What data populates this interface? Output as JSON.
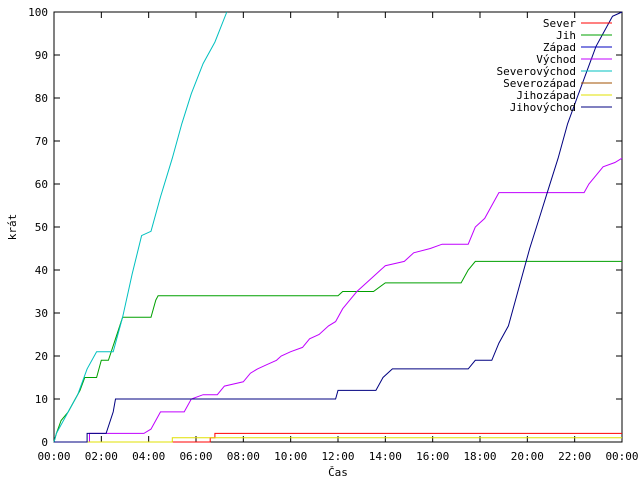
{
  "chart_data": {
    "type": "line",
    "title": "",
    "xlabel": "Čas",
    "ylabel": "krát",
    "x_unit": "hours",
    "xlim": [
      0,
      24
    ],
    "ylim": [
      0,
      100
    ],
    "x_tick_labels": [
      "00:00",
      "02:00",
      "04:00",
      "06:00",
      "08:00",
      "10:00",
      "12:00",
      "14:00",
      "16:00",
      "18:00",
      "20:00",
      "22:00",
      "00:00"
    ],
    "y_tick_labels": [
      "0",
      "10",
      "20",
      "30",
      "40",
      "50",
      "60",
      "70",
      "80",
      "90",
      "100"
    ],
    "grid": false,
    "legend_position": "top-right",
    "series": [
      {
        "name": "Sever",
        "color": "#ff0000",
        "points": [
          [
            0,
            0
          ],
          [
            6.6,
            0
          ],
          [
            6.6,
            1
          ],
          [
            6.8,
            1
          ],
          [
            6.8,
            2
          ],
          [
            24,
            2
          ]
        ]
      },
      {
        "name": "Jih",
        "color": "#00a000",
        "points": [
          [
            0,
            0
          ],
          [
            0.1,
            2
          ],
          [
            0.3,
            5
          ],
          [
            0.6,
            7
          ],
          [
            0.8,
            9
          ],
          [
            1.1,
            12
          ],
          [
            1.3,
            15
          ],
          [
            1.8,
            15
          ],
          [
            2.0,
            19
          ],
          [
            2.3,
            19
          ],
          [
            2.6,
            24
          ],
          [
            2.9,
            29
          ],
          [
            3.5,
            29
          ],
          [
            4.1,
            29
          ],
          [
            4.3,
            33
          ],
          [
            4.4,
            34
          ],
          [
            8.0,
            34
          ],
          [
            12.0,
            34
          ],
          [
            12.2,
            35
          ],
          [
            13.5,
            35
          ],
          [
            14.0,
            37
          ],
          [
            17.2,
            37
          ],
          [
            17.5,
            40
          ],
          [
            17.8,
            42
          ],
          [
            24,
            42
          ]
        ]
      },
      {
        "name": "Západ",
        "color": "#0000c0",
        "points": []
      },
      {
        "name": "Východ",
        "color": "#c000ff",
        "points": [
          [
            0,
            0
          ],
          [
            1.5,
            0
          ],
          [
            1.5,
            2
          ],
          [
            3.8,
            2
          ],
          [
            4.1,
            3
          ],
          [
            4.5,
            7
          ],
          [
            5.5,
            7
          ],
          [
            5.8,
            10
          ],
          [
            6.3,
            11
          ],
          [
            6.9,
            11
          ],
          [
            7.2,
            13
          ],
          [
            8.0,
            14
          ],
          [
            8.3,
            16
          ],
          [
            8.6,
            17
          ],
          [
            9.0,
            18
          ],
          [
            9.4,
            19
          ],
          [
            9.6,
            20
          ],
          [
            10.0,
            21
          ],
          [
            10.5,
            22
          ],
          [
            10.8,
            24
          ],
          [
            11.2,
            25
          ],
          [
            11.6,
            27
          ],
          [
            11.9,
            28
          ],
          [
            12.2,
            31
          ],
          [
            12.5,
            33
          ],
          [
            12.8,
            35
          ],
          [
            13.2,
            37
          ],
          [
            13.6,
            39
          ],
          [
            14.0,
            41
          ],
          [
            14.8,
            42
          ],
          [
            15.2,
            44
          ],
          [
            15.9,
            45
          ],
          [
            16.4,
            46
          ],
          [
            17.5,
            46
          ],
          [
            17.8,
            50
          ],
          [
            18.2,
            52
          ],
          [
            18.5,
            55
          ],
          [
            18.8,
            58
          ],
          [
            21.5,
            58
          ],
          [
            22.4,
            58
          ],
          [
            22.6,
            60
          ],
          [
            22.9,
            62
          ],
          [
            23.2,
            64
          ],
          [
            23.7,
            65
          ],
          [
            24,
            66
          ]
        ]
      },
      {
        "name": "Severovýchod",
        "color": "#00c0c0",
        "points": [
          [
            0,
            0
          ],
          [
            0.1,
            2
          ],
          [
            0.6,
            7
          ],
          [
            1.0,
            11
          ],
          [
            1.4,
            17
          ],
          [
            1.8,
            21
          ],
          [
            2.5,
            21
          ],
          [
            2.9,
            29
          ],
          [
            3.3,
            39
          ],
          [
            3.7,
            48
          ],
          [
            4.1,
            49
          ],
          [
            4.5,
            57
          ],
          [
            5.0,
            66
          ],
          [
            5.4,
            74
          ],
          [
            5.8,
            81
          ],
          [
            6.3,
            88
          ],
          [
            6.8,
            93
          ],
          [
            7.3,
            100
          ]
        ]
      },
      {
        "name": "Severozápad",
        "color": "#a05000",
        "points": []
      },
      {
        "name": "Jihozápad",
        "color": "#e0e000",
        "points": [
          [
            0,
            0
          ],
          [
            5.0,
            0
          ],
          [
            5.0,
            1
          ],
          [
            24,
            1
          ]
        ]
      },
      {
        "name": "Jihovýchod",
        "color": "#000080",
        "points": [
          [
            0,
            0
          ],
          [
            1.4,
            0
          ],
          [
            1.4,
            2
          ],
          [
            2.2,
            2
          ],
          [
            2.5,
            7
          ],
          [
            2.6,
            10
          ],
          [
            6.0,
            10
          ],
          [
            8.0,
            10
          ],
          [
            11.9,
            10
          ],
          [
            12.0,
            12
          ],
          [
            13.6,
            12
          ],
          [
            13.9,
            15
          ],
          [
            14.3,
            17
          ],
          [
            17.5,
            17
          ],
          [
            17.8,
            19
          ],
          [
            18.5,
            19
          ],
          [
            18.8,
            23
          ],
          [
            19.2,
            27
          ],
          [
            19.5,
            33
          ],
          [
            19.8,
            39
          ],
          [
            20.1,
            45
          ],
          [
            20.5,
            52
          ],
          [
            20.9,
            59
          ],
          [
            21.3,
            66
          ],
          [
            21.7,
            74
          ],
          [
            22.1,
            80
          ],
          [
            22.5,
            86
          ],
          [
            22.9,
            92
          ],
          [
            23.3,
            96
          ],
          [
            23.6,
            99
          ],
          [
            24,
            100
          ]
        ]
      }
    ]
  }
}
